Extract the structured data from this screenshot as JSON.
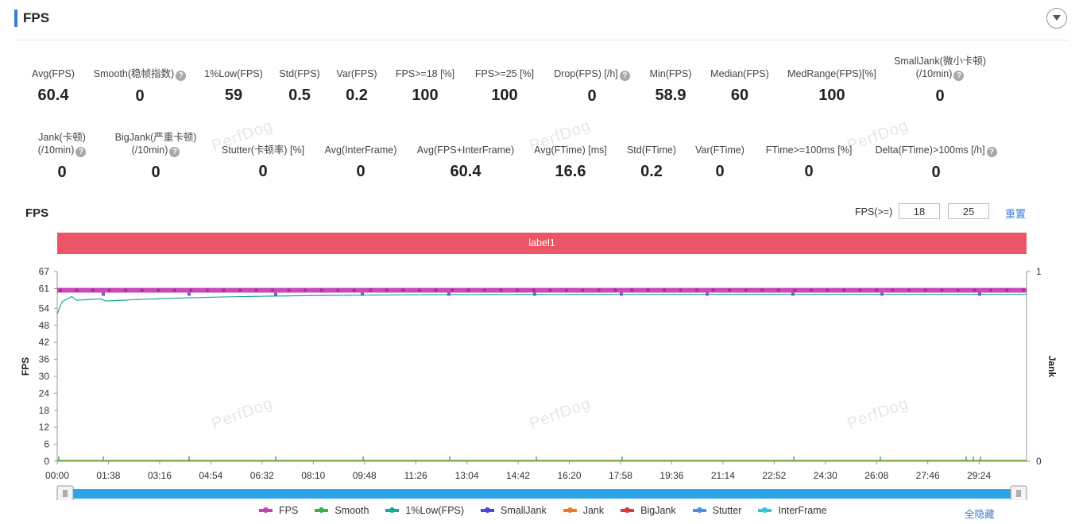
{
  "header": {
    "title": "FPS"
  },
  "metrics_row1": [
    {
      "label": "Avg(FPS)",
      "value": "60.4",
      "help": false
    },
    {
      "label": "Smooth(稳帧指数)",
      "value": "0",
      "help": true
    },
    {
      "label": "1%Low(FPS)",
      "value": "59",
      "help": false
    },
    {
      "label": "Std(FPS)",
      "value": "0.5",
      "help": false
    },
    {
      "label": "Var(FPS)",
      "value": "0.2",
      "help": false
    },
    {
      "label": "FPS>=18 [%]",
      "value": "100",
      "help": false
    },
    {
      "label": "FPS>=25 [%]",
      "value": "100",
      "help": false
    },
    {
      "label": "Drop(FPS) [/h]",
      "value": "0",
      "help": true
    },
    {
      "label": "Min(FPS)",
      "value": "58.9",
      "help": false
    },
    {
      "label": "Median(FPS)",
      "value": "60",
      "help": false
    },
    {
      "label": "MedRange(FPS)[%]",
      "value": "100",
      "help": false
    },
    {
      "label": "SmallJank(微小卡顿)",
      "label2": "(/10min)",
      "value": "0",
      "help": true
    }
  ],
  "metrics_row2": [
    {
      "label": "Jank(卡顿)",
      "label2": "(/10min)",
      "value": "0",
      "help": true
    },
    {
      "label": "BigJank(严重卡顿)",
      "label2": "(/10min)",
      "value": "0",
      "help": true
    },
    {
      "label": "Stutter(卡顿率) [%]",
      "value": "0",
      "help": false
    },
    {
      "label": "Avg(InterFrame)",
      "value": "0",
      "help": false
    },
    {
      "label": "Avg(FPS+InterFrame)",
      "value": "60.4",
      "help": false
    },
    {
      "label": "Avg(FTime) [ms]",
      "value": "16.6",
      "help": false
    },
    {
      "label": "Std(FTime)",
      "value": "0.2",
      "help": false
    },
    {
      "label": "Var(FTime)",
      "value": "0",
      "help": false
    },
    {
      "label": "FTime>=100ms [%]",
      "value": "0",
      "help": false
    },
    {
      "label": "Delta(FTime)>100ms [/h]",
      "value": "0",
      "help": true
    }
  ],
  "watermark": "PerfDog",
  "chart_section": {
    "title": "FPS",
    "fps_ge_label": "FPS(>=)",
    "threshold1": "18",
    "threshold2": "25",
    "reset_label": "重置",
    "label_bar": "label1",
    "hide_all_label": "全隐藏"
  },
  "chart_data": {
    "type": "line",
    "ylabel": "FPS",
    "y2label": "Jank",
    "ylim": [
      0,
      67
    ],
    "y_ticks": [
      0,
      6,
      12,
      18,
      24,
      30,
      36,
      42,
      48,
      54,
      61,
      67
    ],
    "y2_ticks": [
      0,
      1
    ],
    "x_ticks": [
      "00:00",
      "01:38",
      "03:16",
      "04:54",
      "06:32",
      "08:10",
      "09:48",
      "11:26",
      "13:04",
      "14:42",
      "16:20",
      "17:58",
      "19:36",
      "21:14",
      "22:52",
      "24:30",
      "26:08",
      "27:46",
      "29:24"
    ],
    "x_range_seconds": [
      0,
      1855
    ],
    "series": [
      {
        "name": "FPS",
        "color": "#c83fb5",
        "approx_value": 60.4
      },
      {
        "name": "Smooth",
        "color": "#3cb34a",
        "approx_value": 0
      },
      {
        "name": "1%Low(FPS)",
        "color": "#1aa89c",
        "start_value": 52,
        "settle_value": 59
      },
      {
        "name": "SmallJank",
        "color": "#4a4ad8",
        "approx_value": 0
      },
      {
        "name": "Jank",
        "color": "#f07c22",
        "approx_value": 0
      },
      {
        "name": "BigJank",
        "color": "#d83a3a",
        "approx_value": 0
      },
      {
        "name": "Stutter",
        "color": "#4a8fe8",
        "approx_value": 0
      },
      {
        "name": "InterFrame",
        "color": "#33c6dd",
        "approx_value": 0
      }
    ]
  }
}
